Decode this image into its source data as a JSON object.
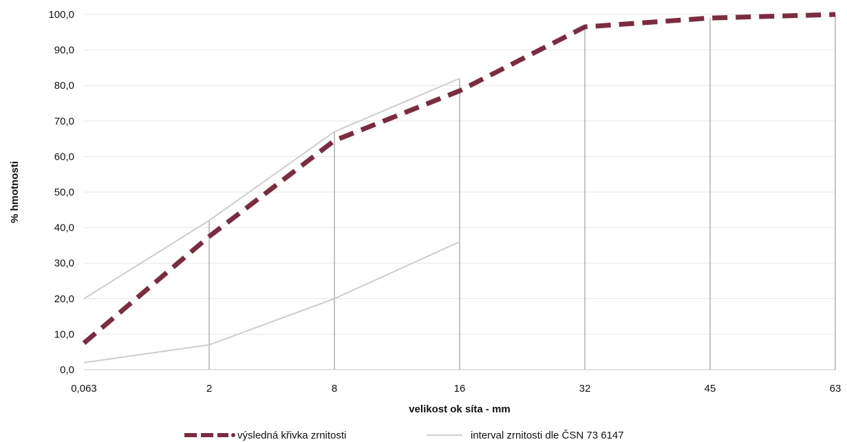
{
  "chart_data": {
    "type": "line",
    "title": "",
    "xlabel": "velikost ok síta - mm",
    "ylabel": "% hmotnosti",
    "categories": [
      "0,063",
      "2",
      "8",
      "16",
      "32",
      "45",
      "63"
    ],
    "y_ticks": [
      "0,0",
      "10,0",
      "20,0",
      "30,0",
      "40,0",
      "50,0",
      "60,0",
      "70,0",
      "80,0",
      "90,0",
      "100,0"
    ],
    "ylim": [
      0,
      100
    ],
    "grid": true,
    "legend_position": "bottom",
    "series": [
      {
        "name": "výsledná křivka zrnitosti",
        "style": "dashed",
        "color": "#7b2d3f",
        "values": [
          7.5,
          37.5,
          64.5,
          78.5,
          96.5,
          99.0,
          100.0
        ]
      },
      {
        "name": "interval zrnitosti dle ČSN 73 6147",
        "style": "solid",
        "color": "#c8cfcc",
        "values": [
          20.0,
          42.0,
          67.0,
          82.0,
          null,
          null,
          null
        ]
      },
      {
        "name": "",
        "style": "solid",
        "color": "#c8cfcc",
        "values": [
          2.0,
          7.0,
          20.0,
          36.0,
          null,
          null,
          null
        ]
      }
    ],
    "vertical_markers": [
      {
        "category": "2",
        "from": 0,
        "to": 42.0
      },
      {
        "category": "8",
        "from": 0,
        "to": 67.0
      },
      {
        "category": "16",
        "from": 0,
        "to": 82.0
      },
      {
        "category": "32",
        "from": 0,
        "to": 96.5
      },
      {
        "category": "45",
        "from": 0,
        "to": 99.0
      },
      {
        "category": "63",
        "from": 0,
        "to": 100.0
      }
    ]
  }
}
